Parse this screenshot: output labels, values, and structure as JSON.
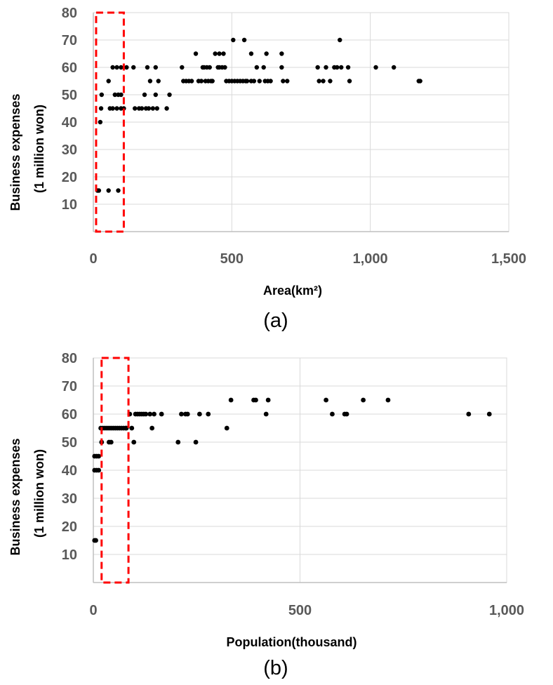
{
  "colors": {
    "point": "#000000",
    "grid": "#d9d9d9",
    "axis": "#bfbfbf",
    "highlight": "#ff0000",
    "tick": "#595959"
  },
  "chart_data": [
    {
      "type": "scatter",
      "panel": "a",
      "caption": "(a)",
      "xlabel": "Area(km²)",
      "ylabel_line1": "Business  expenses",
      "ylabel_line2": "(1  million won)",
      "xlim": [
        0,
        1500
      ],
      "ylim": [
        0,
        80
      ],
      "x_ticks": [
        0,
        500,
        1000,
        1500
      ],
      "x_tick_labels": [
        "0",
        "500",
        "1,000",
        "1,500"
      ],
      "y_ticks": [
        10,
        20,
        30,
        40,
        50,
        60,
        70,
        80
      ],
      "y_tick_labels": [
        "10",
        "20",
        "30",
        "40",
        "50",
        "60",
        "70",
        "80"
      ],
      "highlight_range": {
        "x": [
          10,
          110
        ],
        "y": [
          0,
          80
        ]
      },
      "points": [
        [
          15,
          15
        ],
        [
          20,
          15
        ],
        [
          55,
          15
        ],
        [
          90,
          15
        ],
        [
          25,
          40
        ],
        [
          28,
          45
        ],
        [
          30,
          50
        ],
        [
          55,
          55
        ],
        [
          60,
          45
        ],
        [
          70,
          60
        ],
        [
          70,
          45
        ],
        [
          78,
          50
        ],
        [
          85,
          60
        ],
        [
          85,
          45
        ],
        [
          90,
          50
        ],
        [
          100,
          60
        ],
        [
          100,
          45
        ],
        [
          100,
          50
        ],
        [
          110,
          45
        ],
        [
          120,
          60
        ],
        [
          145,
          60
        ],
        [
          150,
          45
        ],
        [
          165,
          45
        ],
        [
          175,
          45
        ],
        [
          185,
          50
        ],
        [
          190,
          45
        ],
        [
          195,
          60
        ],
        [
          200,
          45
        ],
        [
          205,
          55
        ],
        [
          215,
          45
        ],
        [
          225,
          60
        ],
        [
          225,
          50
        ],
        [
          230,
          45
        ],
        [
          235,
          55
        ],
        [
          265,
          45
        ],
        [
          275,
          50
        ],
        [
          320,
          60
        ],
        [
          325,
          55
        ],
        [
          335,
          55
        ],
        [
          345,
          55
        ],
        [
          355,
          55
        ],
        [
          370,
          65
        ],
        [
          380,
          55
        ],
        [
          390,
          55
        ],
        [
          395,
          60
        ],
        [
          400,
          60
        ],
        [
          405,
          55
        ],
        [
          410,
          60
        ],
        [
          415,
          55
        ],
        [
          420,
          60
        ],
        [
          425,
          55
        ],
        [
          430,
          55
        ],
        [
          440,
          65
        ],
        [
          450,
          60
        ],
        [
          455,
          65
        ],
        [
          455,
          60
        ],
        [
          465,
          60
        ],
        [
          470,
          65
        ],
        [
          475,
          60
        ],
        [
          480,
          55
        ],
        [
          490,
          55
        ],
        [
          500,
          55
        ],
        [
          505,
          70
        ],
        [
          510,
          55
        ],
        [
          520,
          55
        ],
        [
          530,
          55
        ],
        [
          540,
          55
        ],
        [
          545,
          70
        ],
        [
          550,
          55
        ],
        [
          555,
          55
        ],
        [
          570,
          65
        ],
        [
          570,
          55
        ],
        [
          580,
          55
        ],
        [
          590,
          60
        ],
        [
          600,
          55
        ],
        [
          615,
          60
        ],
        [
          620,
          55
        ],
        [
          625,
          65
        ],
        [
          630,
          55
        ],
        [
          640,
          55
        ],
        [
          680,
          65
        ],
        [
          680,
          60
        ],
        [
          685,
          55
        ],
        [
          700,
          55
        ],
        [
          810,
          60
        ],
        [
          815,
          55
        ],
        [
          830,
          55
        ],
        [
          840,
          60
        ],
        [
          855,
          55
        ],
        [
          870,
          60
        ],
        [
          880,
          60
        ],
        [
          890,
          70
        ],
        [
          895,
          60
        ],
        [
          920,
          60
        ],
        [
          925,
          55
        ],
        [
          1020,
          60
        ],
        [
          1085,
          60
        ],
        [
          1175,
          55
        ],
        [
          1180,
          55
        ]
      ]
    },
    {
      "type": "scatter",
      "panel": "b",
      "caption": "(b)",
      "xlabel": "Population(thousand)",
      "ylabel_line1": "Business  expenses",
      "ylabel_line2": "(1  million won)",
      "xlim": [
        0,
        1000
      ],
      "ylim": [
        0,
        80
      ],
      "x_ticks": [
        0,
        500,
        1000
      ],
      "x_tick_labels": [
        "0",
        "500",
        "1,000"
      ],
      "y_ticks": [
        10,
        20,
        30,
        40,
        50,
        60,
        70,
        80
      ],
      "y_tick_labels": [
        "10",
        "20",
        "30",
        "40",
        "50",
        "60",
        "70",
        "80"
      ],
      "highlight_range": {
        "x": [
          20,
          85
        ],
        "y": [
          0,
          80
        ]
      },
      "points": [
        [
          3,
          15
        ],
        [
          6,
          15
        ],
        [
          3,
          40
        ],
        [
          8,
          40
        ],
        [
          13,
          40
        ],
        [
          3,
          45
        ],
        [
          8,
          45
        ],
        [
          13,
          45
        ],
        [
          18,
          55
        ],
        [
          20,
          50
        ],
        [
          23,
          55
        ],
        [
          28,
          55
        ],
        [
          33,
          55
        ],
        [
          38,
          55
        ],
        [
          43,
          55
        ],
        [
          48,
          55
        ],
        [
          53,
          55
        ],
        [
          58,
          55
        ],
        [
          63,
          55
        ],
        [
          68,
          55
        ],
        [
          73,
          55
        ],
        [
          78,
          55
        ],
        [
          80,
          55
        ],
        [
          38,
          50
        ],
        [
          43,
          50
        ],
        [
          88,
          60
        ],
        [
          93,
          55
        ],
        [
          98,
          50
        ],
        [
          102,
          60
        ],
        [
          107,
          60
        ],
        [
          112,
          60
        ],
        [
          117,
          60
        ],
        [
          122,
          60
        ],
        [
          127,
          60
        ],
        [
          137,
          60
        ],
        [
          142,
          55
        ],
        [
          147,
          60
        ],
        [
          165,
          60
        ],
        [
          205,
          50
        ],
        [
          213,
          60
        ],
        [
          223,
          60
        ],
        [
          228,
          60
        ],
        [
          248,
          50
        ],
        [
          257,
          60
        ],
        [
          278,
          60
        ],
        [
          323,
          55
        ],
        [
          333,
          65
        ],
        [
          388,
          65
        ],
        [
          393,
          65
        ],
        [
          418,
          60
        ],
        [
          423,
          65
        ],
        [
          563,
          65
        ],
        [
          578,
          60
        ],
        [
          608,
          60
        ],
        [
          613,
          60
        ],
        [
          653,
          65
        ],
        [
          713,
          65
        ],
        [
          908,
          60
        ],
        [
          958,
          60
        ]
      ]
    }
  ]
}
